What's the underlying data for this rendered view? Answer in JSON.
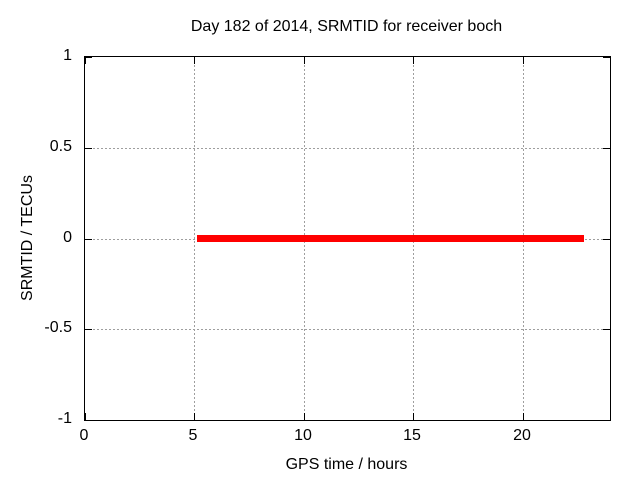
{
  "chart_data": {
    "type": "line",
    "title": "Day 182 of 2014, SRMTID for receiver boch",
    "xlabel": "GPS time / hours",
    "ylabel": "SRMTID / TECUs",
    "xlim": [
      0,
      24
    ],
    "ylim": [
      -1,
      1
    ],
    "x_ticks": [
      0,
      5,
      10,
      15,
      20
    ],
    "x_tick_labels": [
      "0",
      "5",
      "10",
      "15",
      "20"
    ],
    "y_ticks": [
      1,
      0.5,
      0,
      -0.5,
      -1
    ],
    "y_tick_labels": [
      "1",
      "0.5",
      "0",
      "-0.5",
      "-1"
    ],
    "grid": true,
    "legend": null,
    "colors": {
      "series": "#ff0000",
      "grid": "#9e9e9e",
      "axis": "#000000",
      "background": "#ffffff"
    },
    "series": [
      {
        "name": "SRMTID",
        "color": "#ff0000",
        "shape": "horizontal-segment",
        "y": 0,
        "x_start": 5.1,
        "x_end": 22.8,
        "points": [
          [
            5.1,
            0
          ],
          [
            22.8,
            0
          ]
        ]
      }
    ]
  }
}
